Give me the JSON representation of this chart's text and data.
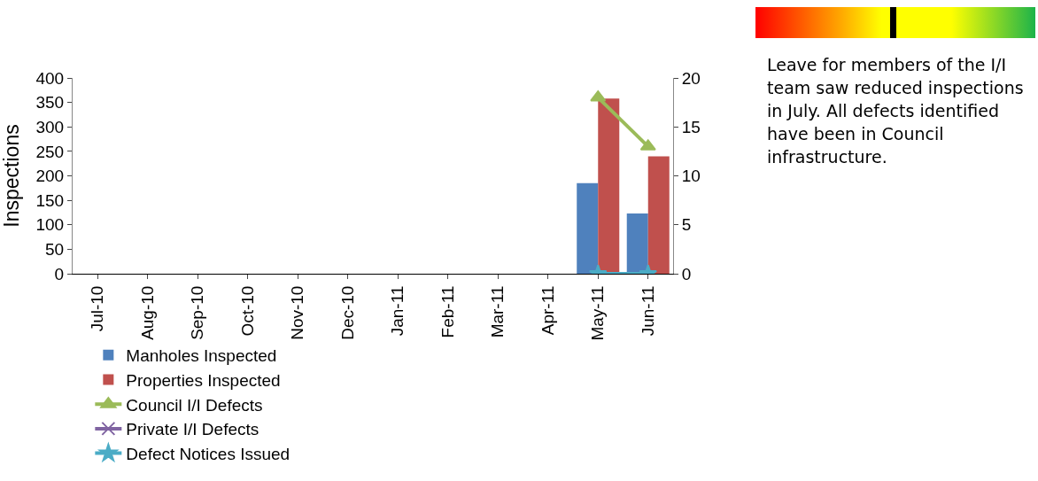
{
  "chart_data": {
    "type": "bar",
    "ylabel": "Inspections",
    "categories": [
      "Jul-10",
      "Aug-10",
      "Sep-10",
      "Oct-10",
      "Nov-10",
      "Dec-10",
      "Jan-11",
      "Feb-11",
      "Mar-11",
      "Apr-11",
      "May-11",
      "Jun-11"
    ],
    "series": [
      {
        "name": "Manholes Inspected",
        "color": "#4f81bd",
        "values": [
          null,
          null,
          null,
          null,
          null,
          null,
          null,
          null,
          null,
          null,
          185,
          123
        ]
      },
      {
        "name": "Properties Inspected",
        "color": "#c0504d",
        "values": [
          null,
          null,
          null,
          null,
          null,
          null,
          null,
          null,
          null,
          null,
          358,
          240
        ]
      },
      {
        "name": "Council I/I Defects",
        "type": "line",
        "axis": "y2",
        "marker": "triangle",
        "color": "#9bbb59",
        "values": [
          null,
          null,
          null,
          null,
          null,
          null,
          null,
          null,
          null,
          null,
          18,
          13
        ]
      },
      {
        "name": "Private I/I Defects",
        "type": "line",
        "axis": "y2",
        "marker": "cross",
        "color": "#8064a2",
        "values": [
          null,
          null,
          null,
          null,
          null,
          null,
          null,
          null,
          null,
          null,
          null,
          null
        ]
      },
      {
        "name": "Defect Notices Issued",
        "type": "line",
        "axis": "y2",
        "marker": "star",
        "color": "#4bacc6",
        "values": [
          null,
          null,
          null,
          null,
          null,
          null,
          null,
          null,
          null,
          null,
          0,
          0
        ]
      }
    ],
    "ylim": [
      0,
      400
    ],
    "yticks": [
      0,
      50,
      100,
      150,
      200,
      250,
      300,
      350,
      400
    ],
    "y2lim": [
      0,
      20
    ],
    "y2ticks": [
      0,
      5,
      10,
      15,
      20
    ],
    "grid": false,
    "legend": "bottom",
    "annotations": [
      "Leave for members of the I/I team saw reduced inspections in July.  All defects identified have been in Council infrastructure."
    ]
  }
}
